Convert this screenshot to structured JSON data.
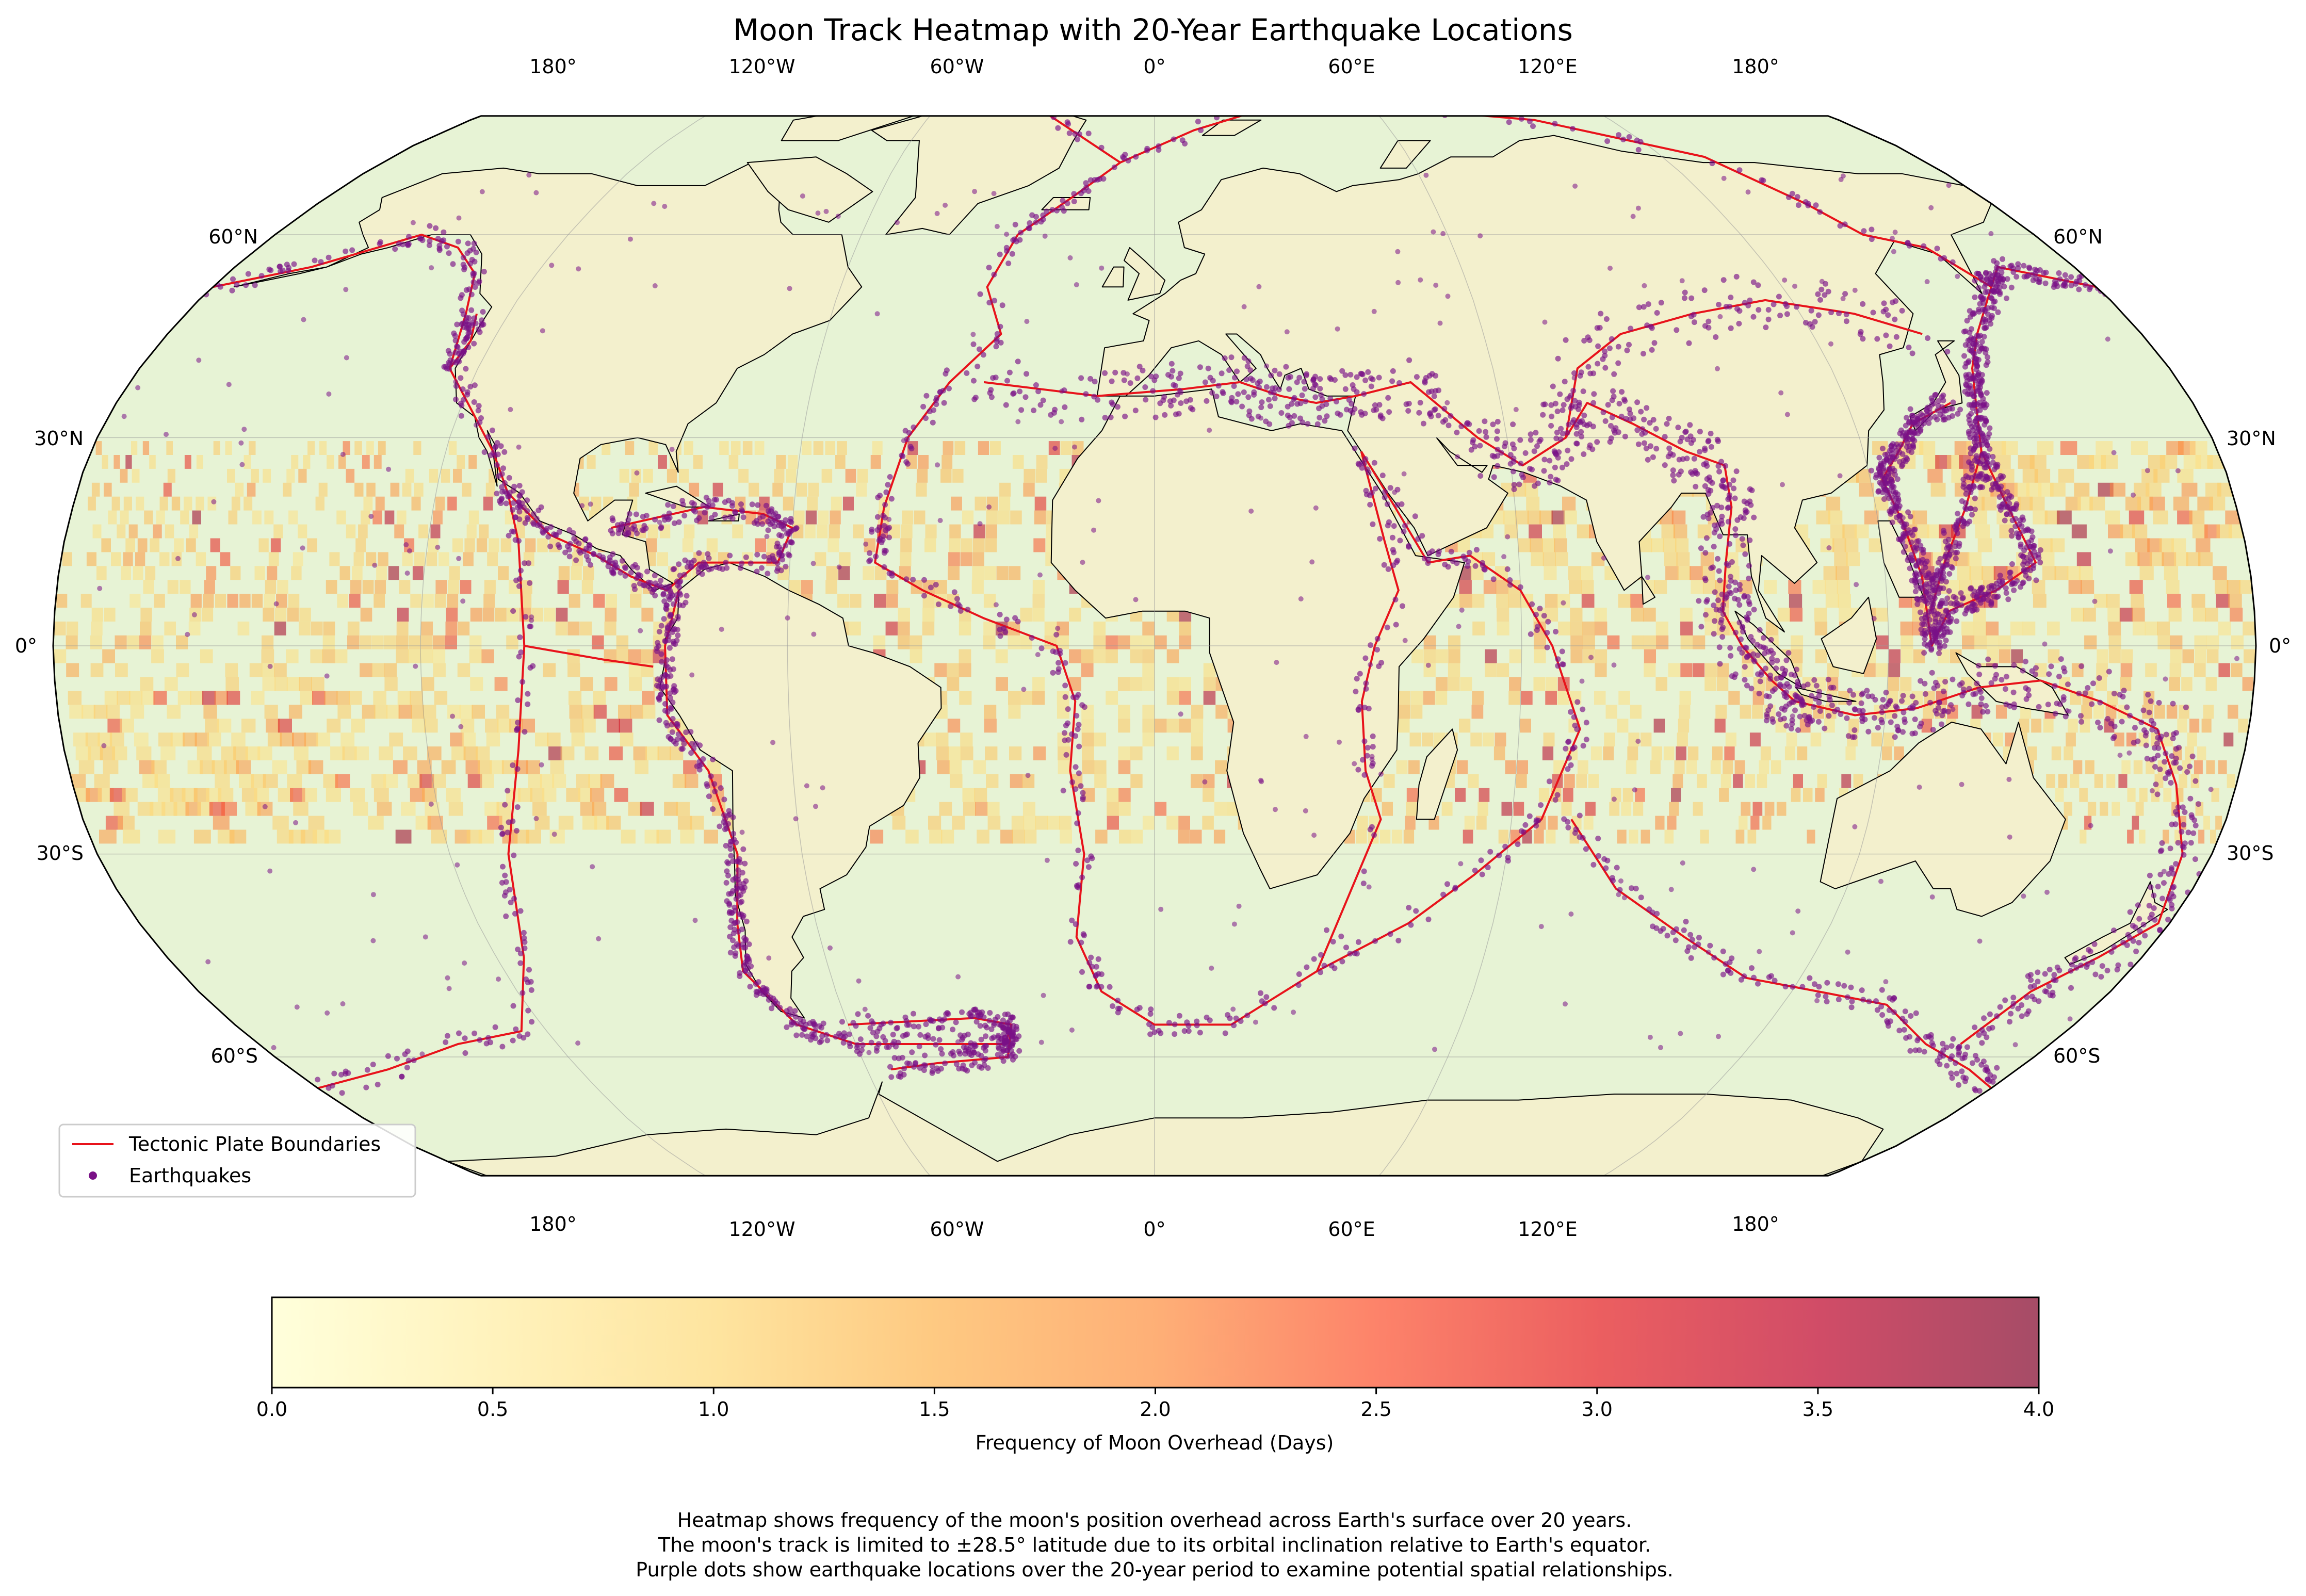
{
  "title": "Moon Track Heatmap with 20-Year Earthquake Locations",
  "map": {
    "projection": "Robinson",
    "longitude_labels_top": [
      "180°",
      "120°W",
      "60°W",
      "0°",
      "60°E",
      "120°E",
      "180°"
    ],
    "longitude_labels_bottom": [
      "180°",
      "120°W",
      "60°W",
      "0°",
      "60°E",
      "120°E",
      "180°"
    ],
    "latitude_labels_left": [
      "60°N",
      "30°N",
      "0°",
      "30°S",
      "60°S"
    ],
    "latitude_labels_right": [
      "60°N",
      "30°N",
      "0°",
      "30°S",
      "60°S"
    ],
    "gridlines": true,
    "moon_track_lat_limit": 28.5,
    "colors": {
      "ocean": "#e7f3d5",
      "land": "#f3f0cd",
      "coastline": "#000000",
      "plate_boundary": "#e8131b",
      "earthquake": "#7a1187"
    }
  },
  "legend": {
    "position": "lower-left",
    "items": [
      {
        "label": "Tectonic Plate Boundaries",
        "symbol": "line",
        "color": "#e8131b"
      },
      {
        "label": "Earthquakes",
        "symbol": "dot",
        "color": "#7a1187"
      }
    ]
  },
  "colorbar": {
    "label": "Frequency of Moon Overhead (Days)",
    "ticks": [
      "0.0",
      "0.5",
      "1.0",
      "1.5",
      "2.0",
      "2.5",
      "3.0",
      "3.5",
      "4.0"
    ],
    "range": [
      0,
      4
    ],
    "colormap": "YlOrRd",
    "stops": [
      "#ffffcc",
      "#ffeda0",
      "#fed976",
      "#feb24c",
      "#fd8d3c",
      "#fc4e2a",
      "#e31a1c",
      "#bd0026",
      "#800026"
    ],
    "alpha": 0.7
  },
  "caption": [
    "Heatmap shows frequency of the moon's position overhead across Earth's surface over 20 years.",
    "The moon's track is limited to ±28.5° latitude due to its orbital inclination relative to Earth's equator.",
    "Purple dots show earthquake locations over the 20-year period to examine potential spatial relationships."
  ]
}
